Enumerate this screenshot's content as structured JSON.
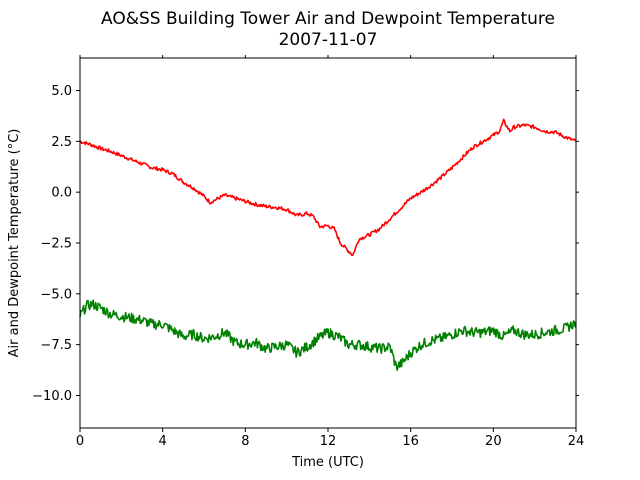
{
  "chart_data": {
    "type": "line",
    "title": "AO&SS Building Tower Air and Dewpoint Temperature",
    "subtitle": "2007-11-07",
    "xlabel": "Time (UTC)",
    "ylabel": "Air and Dewpoint Temperature (°C)",
    "xlim": [
      0,
      24
    ],
    "ylim": [
      -11.6,
      6.6
    ],
    "xticks": [
      0,
      4,
      8,
      12,
      16,
      20,
      24
    ],
    "yticks": [
      -10.0,
      -7.5,
      -5.0,
      -2.5,
      0.0,
      2.5,
      5.0
    ],
    "xtick_labels": [
      "0",
      "4",
      "8",
      "12",
      "16",
      "20",
      "24"
    ],
    "ytick_labels": [
      "−10.0",
      "−7.5",
      "−5.0",
      "−2.5",
      "0.0",
      "2.5",
      "5.0"
    ],
    "grid": false,
    "series": [
      {
        "color": "#ff0000",
        "x": [
          0,
          0.5,
          1,
          1.5,
          2,
          2.5,
          3,
          3.5,
          4,
          4.5,
          5,
          5.5,
          6,
          6.3,
          6.6,
          7,
          7.5,
          8,
          8.5,
          9,
          9.5,
          10,
          10.5,
          11,
          11.3,
          11.6,
          12,
          12.3,
          12.6,
          13,
          13.2,
          13.5,
          14,
          14.5,
          15,
          15.5,
          15.8,
          16,
          16.5,
          17,
          17.5,
          18,
          18.5,
          19,
          19.5,
          20,
          20.3,
          20.5,
          20.8,
          21,
          21.5,
          22,
          22.5,
          23,
          23.5,
          24
        ],
        "y": [
          2.5,
          2.35,
          2.15,
          2.0,
          1.8,
          1.6,
          1.4,
          1.2,
          1.1,
          0.9,
          0.5,
          0.2,
          -0.2,
          -0.5,
          -0.35,
          -0.15,
          -0.3,
          -0.45,
          -0.6,
          -0.7,
          -0.75,
          -0.85,
          -1.15,
          -1.05,
          -1.2,
          -1.7,
          -1.65,
          -1.8,
          -2.5,
          -2.9,
          -3.1,
          -2.3,
          -2.1,
          -1.8,
          -1.3,
          -0.8,
          -0.5,
          -0.3,
          0.0,
          0.35,
          0.75,
          1.2,
          1.7,
          2.2,
          2.5,
          2.8,
          3.0,
          3.5,
          3.0,
          3.2,
          3.3,
          3.2,
          3.0,
          2.95,
          2.7,
          2.5
        ]
      },
      {
        "color": "#008000",
        "x": [
          0,
          0.3,
          0.6,
          1,
          1.5,
          2,
          2.5,
          3,
          3.5,
          4,
          4.5,
          5,
          5.5,
          6,
          6.5,
          7,
          7.5,
          8,
          8.5,
          9,
          9.5,
          10,
          10.5,
          11,
          11.5,
          12,
          12.5,
          13,
          13.5,
          14,
          14.5,
          15,
          15.3,
          15.6,
          16,
          16.5,
          17,
          17.5,
          18,
          18.5,
          19,
          19.5,
          20,
          20.5,
          21,
          21.5,
          22,
          22.5,
          23,
          23.5,
          24
        ],
        "y": [
          -6.1,
          -5.6,
          -5.5,
          -5.7,
          -6.0,
          -6.1,
          -6.2,
          -6.3,
          -6.5,
          -6.5,
          -6.8,
          -7.1,
          -7.0,
          -7.2,
          -7.1,
          -6.9,
          -7.4,
          -7.5,
          -7.4,
          -7.7,
          -7.6,
          -7.5,
          -7.9,
          -7.6,
          -7.2,
          -6.9,
          -7.1,
          -7.5,
          -7.5,
          -7.6,
          -7.7,
          -7.6,
          -8.6,
          -8.4,
          -7.9,
          -7.5,
          -7.3,
          -7.2,
          -7.0,
          -6.8,
          -6.9,
          -6.9,
          -6.8,
          -7.1,
          -6.8,
          -7.0,
          -7.0,
          -6.9,
          -6.8,
          -6.7,
          -6.4
        ]
      }
    ]
  }
}
